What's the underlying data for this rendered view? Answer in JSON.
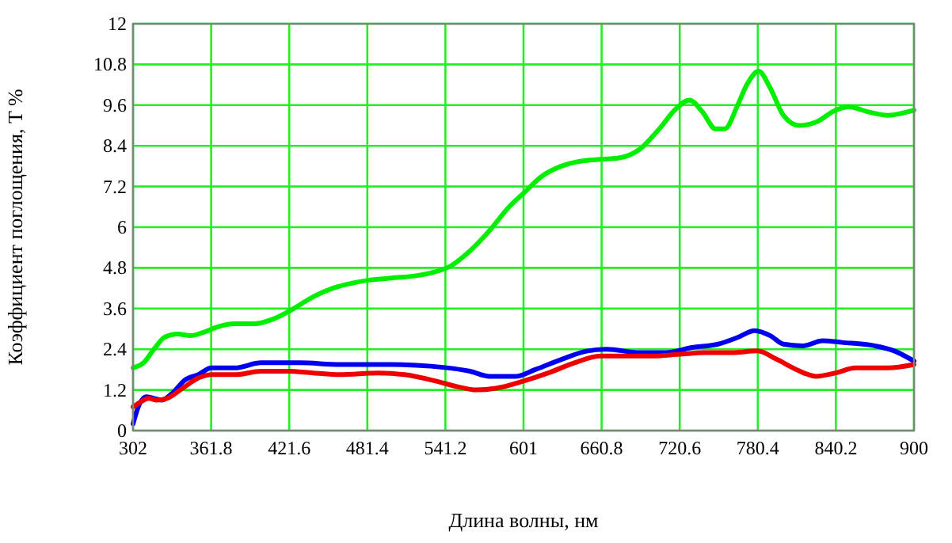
{
  "chart_data": {
    "type": "line",
    "xlabel": "Длина волны, нм",
    "ylabel": "Коэффициент поглощения, T %",
    "xlim": [
      302,
      900
    ],
    "xticks": [
      302,
      361.8,
      421.6,
      481.4,
      541.2,
      601,
      660.8,
      720.6,
      780.4,
      840.2,
      900
    ],
    "ylim": [
      0,
      12
    ],
    "yticks": [
      0,
      1.2,
      2.4,
      3.6,
      4.8,
      6,
      7.2,
      8.4,
      9.6,
      10.8,
      12
    ],
    "grid": true,
    "line_style": "solid",
    "series": [
      {
        "color": "#00ee00",
        "x": [
          302,
          310,
          318,
          326,
          336,
          346,
          356,
          366,
          380,
          395,
          410,
          425,
          440,
          455,
          470,
          485,
          500,
          515,
          530,
          545,
          560,
          575,
          590,
          601,
          615,
          630,
          645,
          660,
          675,
          690,
          705,
          718,
          728,
          738,
          748,
          755,
          765,
          772,
          781,
          790,
          800,
          812,
          825,
          840,
          850,
          865,
          880,
          900
        ],
        "values": [
          1.85,
          2.0,
          2.4,
          2.75,
          2.85,
          2.8,
          2.9,
          3.05,
          3.15,
          3.15,
          3.3,
          3.6,
          3.95,
          4.2,
          4.35,
          4.45,
          4.5,
          4.55,
          4.65,
          4.85,
          5.3,
          5.9,
          6.6,
          7.0,
          7.5,
          7.8,
          7.95,
          8.0,
          8.05,
          8.3,
          8.9,
          9.5,
          9.75,
          9.4,
          8.9,
          8.9,
          9.6,
          10.2,
          10.6,
          10.1,
          9.3,
          9.0,
          9.1,
          9.45,
          9.55,
          9.4,
          9.3,
          9.45
        ]
      },
      {
        "color": "#0000ee",
        "x": [
          302,
          306,
          312,
          318,
          324,
          332,
          342,
          352,
          362,
          380,
          400,
          430,
          460,
          500,
          530,
          560,
          575,
          595,
          610,
          630,
          650,
          665,
          690,
          710,
          730,
          750,
          765,
          778,
          790,
          800,
          815,
          830,
          845,
          870,
          885,
          900
        ],
        "values": [
          0.2,
          0.7,
          1.0,
          0.95,
          0.9,
          1.1,
          1.5,
          1.65,
          1.85,
          1.85,
          2.0,
          2.0,
          1.95,
          1.95,
          1.9,
          1.75,
          1.6,
          1.6,
          1.8,
          2.1,
          2.35,
          2.4,
          2.3,
          2.3,
          2.45,
          2.55,
          2.75,
          2.95,
          2.8,
          2.55,
          2.5,
          2.65,
          2.6,
          2.5,
          2.35,
          2.05
        ]
      },
      {
        "color": "#ee0000",
        "x": [
          302,
          308,
          314,
          320,
          328,
          340,
          352,
          362,
          380,
          400,
          420,
          440,
          460,
          490,
          510,
          535,
          550,
          565,
          580,
          600,
          620,
          640,
          660,
          680,
          700,
          720,
          740,
          760,
          780,
          795,
          810,
          825,
          840,
          855,
          880,
          900
        ],
        "values": [
          0.7,
          0.85,
          0.95,
          0.9,
          0.95,
          1.25,
          1.55,
          1.65,
          1.65,
          1.75,
          1.75,
          1.7,
          1.65,
          1.7,
          1.65,
          1.45,
          1.3,
          1.2,
          1.25,
          1.45,
          1.7,
          2.0,
          2.2,
          2.2,
          2.2,
          2.25,
          2.3,
          2.3,
          2.35,
          2.1,
          1.8,
          1.6,
          1.7,
          1.85,
          1.85,
          1.95
        ]
      }
    ]
  }
}
